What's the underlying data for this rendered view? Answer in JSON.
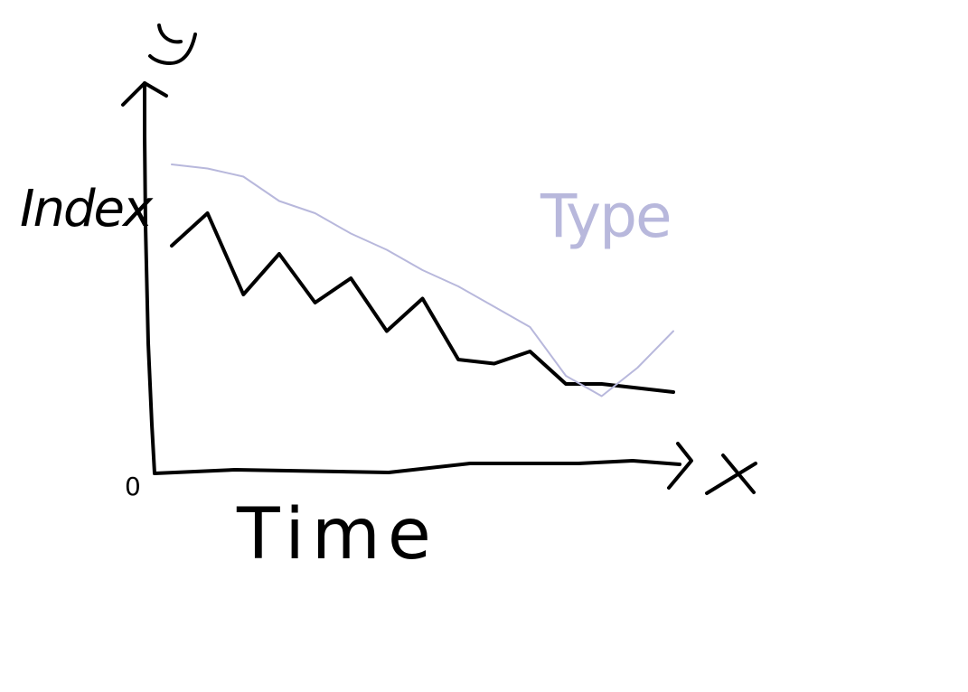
{
  "chart_data": {
    "type": "line",
    "xlabel": "Time",
    "ylabel": "Index",
    "x_axis_letter": "x",
    "y_axis_letter": "y",
    "origin_label": "0",
    "series": [
      {
        "name": "",
        "color": "#000000",
        "x": [
          0,
          0.5,
          1,
          1.5,
          2,
          2.5,
          3,
          3.5,
          4,
          4.5,
          5,
          5.5,
          6,
          6.5,
          7
        ],
        "values": [
          5.6,
          6.4,
          4.4,
          5.4,
          4.2,
          4.8,
          3.5,
          4.3,
          2.8,
          2.7,
          3.0,
          2.2,
          2.2,
          2.1,
          2.0
        ]
      },
      {
        "name": "Type",
        "color": "#b8b8dc",
        "x": [
          0,
          0.5,
          1,
          1.5,
          2,
          2.5,
          3,
          3.5,
          4,
          4.5,
          5,
          5.5,
          6,
          6.5,
          7
        ],
        "values": [
          7.6,
          7.5,
          7.3,
          6.7,
          6.4,
          5.9,
          5.5,
          5.0,
          4.6,
          4.1,
          3.6,
          2.4,
          1.9,
          2.6,
          3.5
        ]
      }
    ]
  }
}
